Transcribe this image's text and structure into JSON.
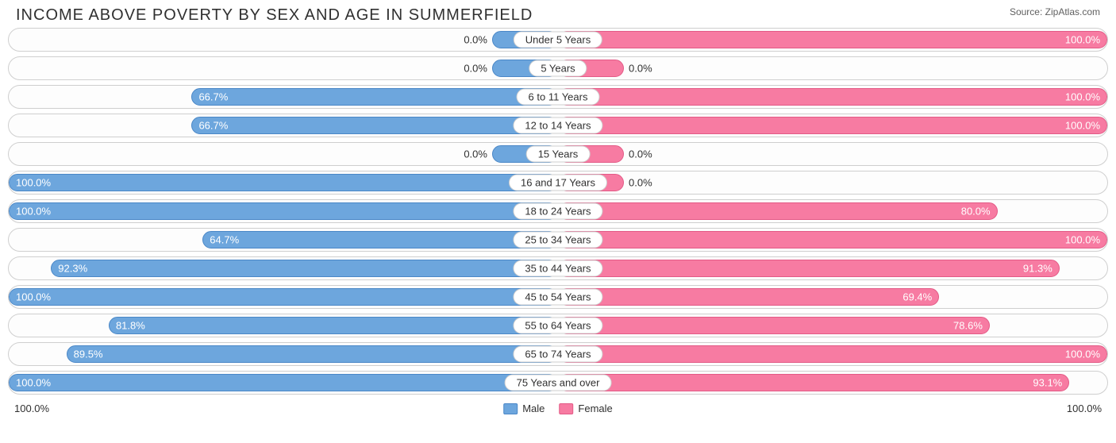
{
  "title": "INCOME ABOVE POVERTY BY SEX AND AGE IN SUMMERFIELD",
  "source": "Source: ZipAtlas.com",
  "axis": {
    "left": "100.0%",
    "right": "100.0%"
  },
  "legend": {
    "male": "Male",
    "female": "Female"
  },
  "colors": {
    "male_fill": "#6da6dd",
    "male_border": "#4a87c7",
    "female_fill": "#f77ba2",
    "female_border": "#e35a86",
    "row_border": "#cfcfcf",
    "text": "#303030"
  },
  "min_bar_pct": 12,
  "rows": [
    {
      "category": "Under 5 Years",
      "male": 0.0,
      "female": 100.0
    },
    {
      "category": "5 Years",
      "male": 0.0,
      "female": 0.0
    },
    {
      "category": "6 to 11 Years",
      "male": 66.7,
      "female": 100.0
    },
    {
      "category": "12 to 14 Years",
      "male": 66.7,
      "female": 100.0
    },
    {
      "category": "15 Years",
      "male": 0.0,
      "female": 0.0
    },
    {
      "category": "16 and 17 Years",
      "male": 100.0,
      "female": 0.0
    },
    {
      "category": "18 to 24 Years",
      "male": 100.0,
      "female": 80.0
    },
    {
      "category": "25 to 34 Years",
      "male": 64.7,
      "female": 100.0
    },
    {
      "category": "35 to 44 Years",
      "male": 92.3,
      "female": 91.3
    },
    {
      "category": "45 to 54 Years",
      "male": 100.0,
      "female": 69.4
    },
    {
      "category": "55 to 64 Years",
      "male": 81.8,
      "female": 78.6
    },
    {
      "category": "65 to 74 Years",
      "male": 89.5,
      "female": 100.0
    },
    {
      "category": "75 Years and over",
      "male": 100.0,
      "female": 93.1
    }
  ]
}
